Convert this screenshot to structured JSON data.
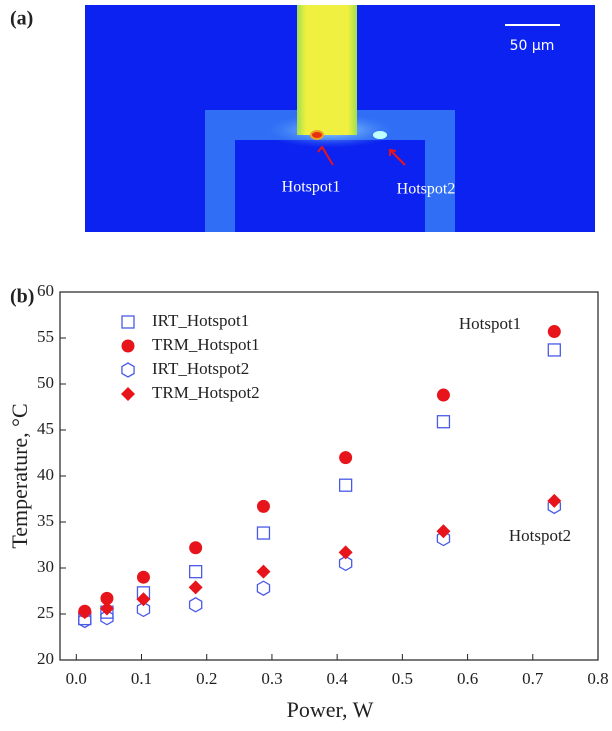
{
  "panel_a": {
    "label": "(a)",
    "scale_bar": "50 μm",
    "hotspot_labels": [
      "Hotspot1",
      "Hotspot2"
    ]
  },
  "chart_data": {
    "type": "scatter",
    "panel_label": "(b)",
    "x_label": "Power, W",
    "y_label": "Temperature, °C",
    "x": [
      0.013,
      0.047,
      0.103,
      0.183,
      0.287,
      0.413,
      0.563,
      0.733
    ],
    "series": [
      {
        "name": "IRT_Hotspot1",
        "color": "#4a5ae8",
        "marker": "square",
        "values": [
          24.5,
          25.2,
          27.3,
          29.6,
          33.8,
          39,
          45.9,
          53.7
        ]
      },
      {
        "name": "TRM_Hotspot1",
        "color": "#e8141c",
        "marker": "circle",
        "values": [
          25.3,
          26.7,
          29,
          32.2,
          36.7,
          42,
          48.8,
          55.7
        ]
      },
      {
        "name": "IRT_Hotspot2",
        "color": "#4a5ae8",
        "marker": "hexagon",
        "values": [
          24.3,
          24.6,
          25.5,
          26,
          27.8,
          30.5,
          33.2,
          36.7
        ]
      },
      {
        "name": "TRM_Hotspot2",
        "color": "#e8141c",
        "marker": "diamond",
        "values": [
          25.2,
          25.6,
          26.6,
          27.9,
          29.6,
          31.7,
          34,
          37.3
        ]
      }
    ],
    "annotations": [
      "Hotspot1",
      "Hotspot2"
    ],
    "xlim": [
      -0.025,
      0.8
    ],
    "xticks": [
      {
        "value": 0,
        "label": "0.0"
      },
      0.1,
      0.2,
      0.3,
      0.4,
      0.5,
      0.6,
      0.7,
      0.8
    ],
    "ylim": [
      20,
      60
    ],
    "yticks": [
      20,
      25,
      30,
      35,
      40,
      45,
      50,
      55,
      60
    ],
    "legend": "upper left"
  }
}
